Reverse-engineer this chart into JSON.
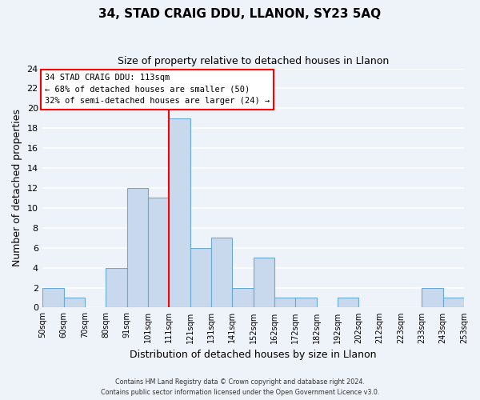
{
  "title": "34, STAD CRAIG DDU, LLANON, SY23 5AQ",
  "subtitle": "Size of property relative to detached houses in Llanon",
  "xlabel": "Distribution of detached houses by size in Llanon",
  "ylabel": "Number of detached properties",
  "bar_color": "#c8d9ed",
  "bar_edge_color": "#6aaad4",
  "background_color": "#eef2f9",
  "grid_color": "white",
  "annotation_line_bin": 6,
  "annotation_text_line1": "34 STAD CRAIG DDU: 113sqm",
  "annotation_text_line2": "← 68% of detached houses are smaller (50)",
  "annotation_text_line3": "32% of semi-detached houses are larger (24) →",
  "bin_counts": [
    2,
    1,
    0,
    4,
    12,
    11,
    19,
    6,
    7,
    2,
    5,
    1,
    1,
    0,
    1,
    0,
    0,
    0,
    2,
    1
  ],
  "tick_labels": [
    "50sqm",
    "60sqm",
    "70sqm",
    "80sqm",
    "91sqm",
    "101sqm",
    "111sqm",
    "121sqm",
    "131sqm",
    "141sqm",
    "152sqm",
    "162sqm",
    "172sqm",
    "182sqm",
    "192sqm",
    "202sqm",
    "212sqm",
    "223sqm",
    "233sqm",
    "243sqm",
    "253sqm"
  ],
  "ylim": [
    0,
    24
  ],
  "yticks": [
    0,
    2,
    4,
    6,
    8,
    10,
    12,
    14,
    16,
    18,
    20,
    22,
    24
  ],
  "footer_line1": "Contains HM Land Registry data © Crown copyright and database right 2024.",
  "footer_line2": "Contains public sector information licensed under the Open Government Licence v3.0."
}
